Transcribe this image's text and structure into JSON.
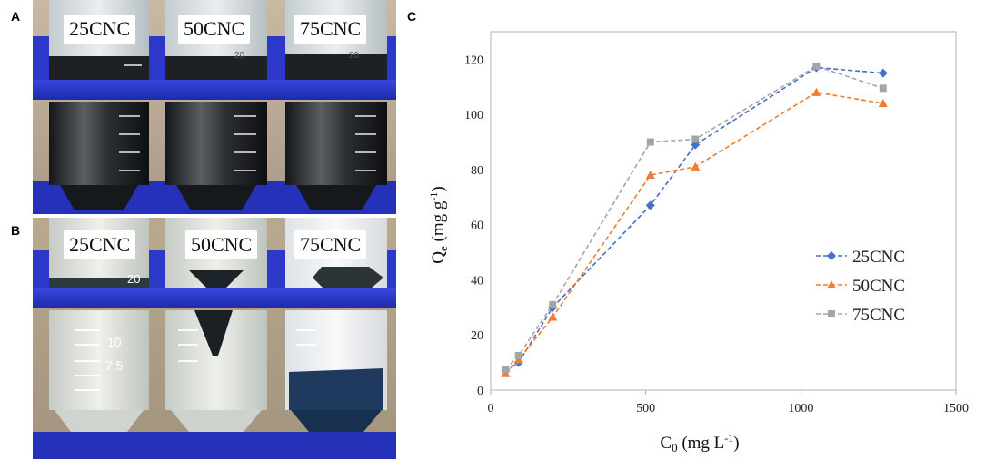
{
  "panels": {
    "a": "A",
    "b": "B",
    "c": "C"
  },
  "photo_a": {
    "labels": [
      "25CNC",
      "50CNC",
      "75CNC"
    ],
    "tube_marks": [
      "20",
      "20"
    ]
  },
  "photo_b": {
    "labels": [
      "25CNC",
      "50CNC",
      "75CNC"
    ],
    "tube_marks": [
      "20",
      "10",
      "7.5"
    ]
  },
  "colors": {
    "s25": "#4472C4",
    "s50": "#ED7D31",
    "s75": "#A5A5A5",
    "rack": "#2f3ed6"
  },
  "chart_data": {
    "type": "line",
    "title": "",
    "xlabel": "C",
    "xlabel_sub": "0",
    "xlabel_unit": " (mg L",
    "xlabel_exp": "-1",
    "xlabel_close": ")",
    "ylabel": "Q",
    "ylabel_sub": "e",
    "ylabel_unit": " (mg g",
    "ylabel_exp": "-1",
    "ylabel_close": ")",
    "xlim": [
      0,
      1500
    ],
    "ylim": [
      0,
      130
    ],
    "xticks": [
      0,
      500,
      1000,
      1500
    ],
    "yticks": [
      0,
      20,
      40,
      60,
      80,
      100,
      120
    ],
    "legend_position": "right-middle",
    "series": [
      {
        "name": "25CNC",
        "marker": "diamond",
        "color": "#4472C4",
        "x": [
          48,
          90,
          200,
          515,
          660,
          1050,
          1265
        ],
        "y": [
          7,
          10,
          30,
          67,
          89,
          117,
          115
        ]
      },
      {
        "name": "50CNC",
        "marker": "triangle",
        "color": "#ED7D31",
        "x": [
          48,
          90,
          200,
          515,
          660,
          1050,
          1265
        ],
        "y": [
          6,
          11,
          26.5,
          78,
          81,
          108,
          104
        ]
      },
      {
        "name": "75CNC",
        "marker": "square",
        "color": "#A5A5A5",
        "x": [
          48,
          90,
          200,
          515,
          660,
          1050,
          1265
        ],
        "y": [
          7.5,
          12.5,
          31,
          90,
          91,
          117.5,
          109.5
        ]
      }
    ]
  }
}
